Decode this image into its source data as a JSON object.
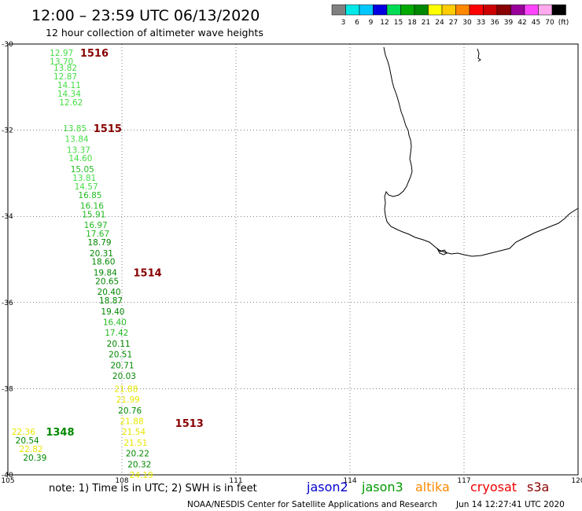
{
  "header": {
    "title": "12:00 – 23:59 UTC 06/13/2020",
    "subtitle": "12 hour collection of altimeter wave heights"
  },
  "legend": {
    "colors": [
      "#808080",
      "#00e8e8",
      "#00c8ff",
      "#0000e0",
      "#00dd55",
      "#00aa00",
      "#008800",
      "#ffff00",
      "#ffcc00",
      "#ff8800",
      "#ff0000",
      "#cc0000",
      "#880000",
      "#990099",
      "#ff44ff",
      "#ffaaee",
      "#000000"
    ],
    "labels": [
      "3",
      "6",
      "9",
      "12",
      "15",
      "18",
      "21",
      "24",
      "27",
      "30",
      "33",
      "36",
      "39",
      "42",
      "45",
      "70",
      "(ft)"
    ]
  },
  "chart_data": {
    "type": "scatter",
    "title": "12:00 – 23:59 UTC 06/13/2020",
    "subtitle": "12 hour collection of altimeter wave heights",
    "xlabel": "",
    "ylabel": "",
    "units": "ft",
    "xlim": [
      105,
      120
    ],
    "ylim": [
      -40,
      -30
    ],
    "xticks": [
      "105",
      "108",
      "111",
      "114",
      "117",
      "120"
    ],
    "yticks": [
      "-30",
      "-32",
      "-34",
      "-36",
      "-38",
      "-40"
    ],
    "grid": true,
    "tracks": [
      {
        "points": [
          {
            "lon": 106.1,
            "lat": -30.2,
            "label": "12.97",
            "color": "#44dd44"
          },
          {
            "lon": 106.1,
            "lat": -30.4,
            "label": "13.70",
            "color": "#44dd44"
          },
          {
            "lon": 106.2,
            "lat": -30.55,
            "label": "13.82",
            "color": "#44dd44"
          },
          {
            "lon": 106.2,
            "lat": -30.75,
            "label": "12.87",
            "color": "#44dd44"
          },
          {
            "lon": 106.3,
            "lat": -30.95,
            "label": "14.11",
            "color": "#44dd44"
          },
          {
            "lon": 106.3,
            "lat": -31.15,
            "label": "14.34",
            "color": "#44dd44"
          },
          {
            "lon": 106.35,
            "lat": -31.35,
            "label": "12.62",
            "color": "#44dd44"
          },
          {
            "lon": 106.45,
            "lat": -31.95,
            "label": "13.85",
            "color": "#44dd44"
          },
          {
            "lon": 106.5,
            "lat": -32.2,
            "label": "13.84",
            "color": "#44dd44"
          },
          {
            "lon": 106.55,
            "lat": -32.45,
            "label": "13.37",
            "color": "#44dd44"
          },
          {
            "lon": 106.6,
            "lat": -32.65,
            "label": "14.60",
            "color": "#44dd44"
          },
          {
            "lon": 106.65,
            "lat": -32.9,
            "label": "15.05",
            "color": "#22bb22"
          },
          {
            "lon": 106.7,
            "lat": -33.1,
            "label": "13.81",
            "color": "#44dd44"
          },
          {
            "lon": 106.75,
            "lat": -33.3,
            "label": "14.57",
            "color": "#44dd44"
          },
          {
            "lon": 106.85,
            "lat": -33.5,
            "label": "16.85",
            "color": "#22bb22"
          },
          {
            "lon": 106.9,
            "lat": -33.75,
            "label": "16.16",
            "color": "#22bb22"
          },
          {
            "lon": 106.95,
            "lat": -33.95,
            "label": "15.91",
            "color": "#22bb22"
          },
          {
            "lon": 107.0,
            "lat": -34.2,
            "label": "16.97",
            "color": "#22bb22"
          },
          {
            "lon": 107.05,
            "lat": -34.4,
            "label": "17.67",
            "color": "#22bb22"
          },
          {
            "lon": 107.1,
            "lat": -34.6,
            "label": "18.79",
            "color": "#008800"
          },
          {
            "lon": 107.15,
            "lat": -34.85,
            "label": "20.31",
            "color": "#008800"
          },
          {
            "lon": 107.2,
            "lat": -35.05,
            "label": "18.60",
            "color": "#008800"
          },
          {
            "lon": 107.25,
            "lat": -35.3,
            "label": "19.84",
            "color": "#008800"
          },
          {
            "lon": 107.3,
            "lat": -35.5,
            "label": "20.65",
            "color": "#008800"
          },
          {
            "lon": 107.35,
            "lat": -35.75,
            "label": "20.40",
            "color": "#008800"
          },
          {
            "lon": 107.4,
            "lat": -35.95,
            "label": "18.87",
            "color": "#008800"
          },
          {
            "lon": 107.45,
            "lat": -36.2,
            "label": "19.40",
            "color": "#008800"
          },
          {
            "lon": 107.5,
            "lat": -36.45,
            "label": "16.40",
            "color": "#22bb22"
          },
          {
            "lon": 107.55,
            "lat": -36.7,
            "label": "17.42",
            "color": "#22bb22"
          },
          {
            "lon": 107.6,
            "lat": -36.95,
            "label": "20.11",
            "color": "#008800"
          },
          {
            "lon": 107.65,
            "lat": -37.2,
            "label": "20.51",
            "color": "#008800"
          },
          {
            "lon": 107.7,
            "lat": -37.45,
            "label": "20.71",
            "color": "#008800"
          },
          {
            "lon": 107.75,
            "lat": -37.7,
            "label": "20.03",
            "color": "#008800"
          },
          {
            "lon": 107.8,
            "lat": -38.0,
            "label": "21.88",
            "color": "#e6e600"
          },
          {
            "lon": 107.85,
            "lat": -38.25,
            "label": "21.99",
            "color": "#e6e600"
          },
          {
            "lon": 107.9,
            "lat": -38.5,
            "label": "20.76",
            "color": "#008800"
          },
          {
            "lon": 107.95,
            "lat": -38.75,
            "label": "21.88",
            "color": "#e6e600"
          },
          {
            "lon": 108.0,
            "lat": -39.0,
            "label": "21.54",
            "color": "#e6e600"
          },
          {
            "lon": 108.05,
            "lat": -39.25,
            "label": "21.51",
            "color": "#e6e600"
          },
          {
            "lon": 108.1,
            "lat": -39.5,
            "label": "20.22",
            "color": "#008800"
          },
          {
            "lon": 108.15,
            "lat": -39.75,
            "label": "20.32",
            "color": "#008800"
          },
          {
            "lon": 108.2,
            "lat": -40.0,
            "label": "24.19",
            "color": "#e6e600"
          }
        ],
        "hour_markers": [
          {
            "lon": 106.9,
            "lat": -30.2,
            "label": "1516",
            "color": "#880000"
          },
          {
            "lon": 107.25,
            "lat": -31.95,
            "label": "1515",
            "color": "#880000"
          },
          {
            "lon": 108.3,
            "lat": -35.3,
            "label": "1514",
            "color": "#880000"
          },
          {
            "lon": 109.4,
            "lat": -38.8,
            "label": "1513",
            "color": "#880000"
          }
        ]
      },
      {
        "points": [
          {
            "lon": 105.1,
            "lat": -39.0,
            "label": "22.36",
            "color": "#e6e600"
          },
          {
            "lon": 105.2,
            "lat": -39.2,
            "label": "20.54",
            "color": "#008800"
          },
          {
            "lon": 105.3,
            "lat": -39.4,
            "label": "22.82",
            "color": "#e6e600"
          },
          {
            "lon": 105.4,
            "lat": -39.6,
            "label": "20.39",
            "color": "#008800"
          }
        ],
        "hour_markers": [
          {
            "lon": 106.0,
            "lat": -39.0,
            "label": "1348",
            "color": "#008800"
          }
        ]
      }
    ]
  },
  "footer": {
    "note": "note:  1) Time is in UTC;  2) SWH is in feet",
    "satellites": [
      {
        "name": "jason2",
        "color": "#0000cc"
      },
      {
        "name": "jason3",
        "color": "#009900"
      },
      {
        "name": "altika",
        "color": "#ff8800"
      },
      {
        "name": "cryosat",
        "color": "#ee0000"
      },
      {
        "name": "s3a",
        "color": "#880000"
      }
    ],
    "agency": "NOAA/NESDIS Center for Satellite Applications and Research",
    "timestamp": "Jun 14 12:27:41 UTC 2020"
  }
}
